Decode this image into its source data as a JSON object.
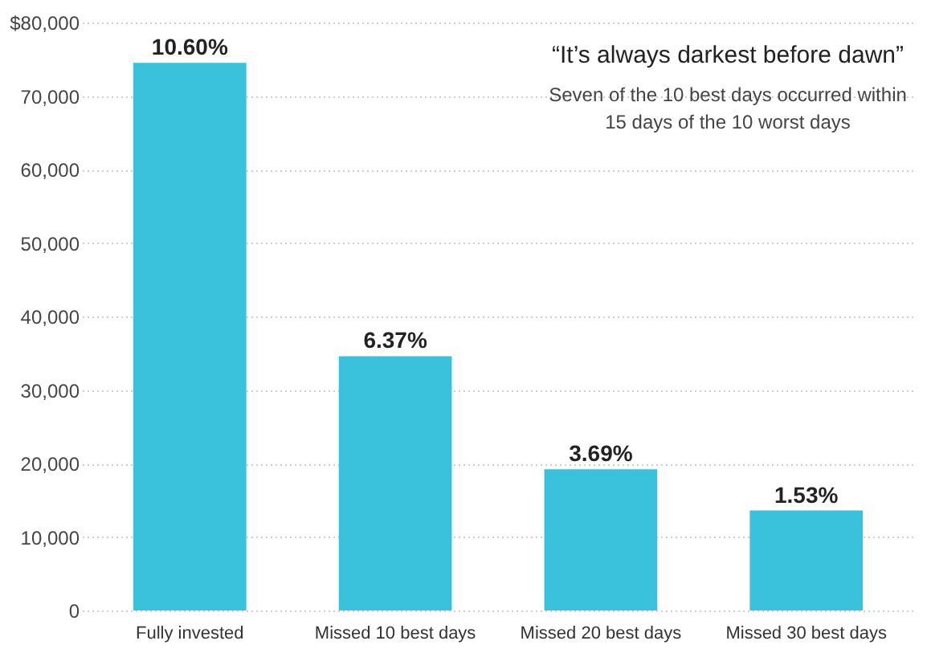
{
  "chart_data": {
    "type": "bar",
    "categories": [
      "Fully invested",
      "Missed 10 best days",
      "Missed 20 best days",
      "Missed 30 best days"
    ],
    "values": [
      74500,
      34600,
      19200,
      13600
    ],
    "color": "#3ac1dc",
    "ylim": [
      0,
      80000
    ],
    "yticks": [
      0,
      {
        "value": 10000,
        "label": "10,000"
      },
      {
        "value": 20000,
        "label": "20,000"
      },
      {
        "value": 30000,
        "label": "30,000"
      },
      {
        "value": 40000,
        "label": "40,000"
      },
      {
        "value": 50000,
        "label": "50,000"
      },
      {
        "value": 60000,
        "label": "60,000"
      },
      {
        "value": 70000,
        "label": "70,000"
      },
      {
        "value": 80000,
        "label": "$80,000"
      }
    ],
    "grid": "y",
    "annotations": [
      "“It’s always darkest before dawn”",
      "Seven of the 10 best days occurred within",
      "15 days of the 10 worst days",
      {
        "text": "10.60%",
        "x": "Fully invested",
        "y": 74500
      },
      {
        "text": "6.37%",
        "x": "Missed 10 best days",
        "y": 34600
      },
      {
        "text": "3.69%",
        "x": "Missed 20 best days",
        "y": 19200
      },
      {
        "text": "1.53%",
        "x": "Missed 30 best days",
        "y": 13600
      }
    ]
  }
}
